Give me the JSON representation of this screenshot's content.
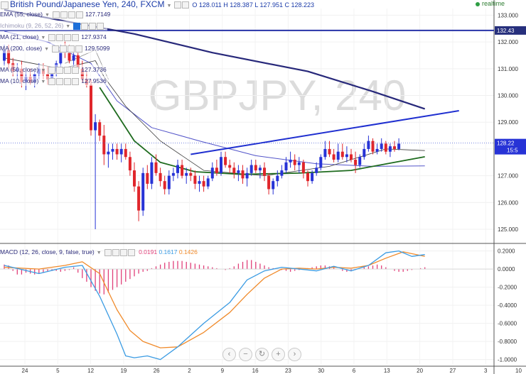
{
  "header": {
    "symbol_title": "British Pound/Japanese Yen, 240, FXCM",
    "ohlc": "O 128.011 H 128.387 L 127.951 C 128.223",
    "status": "realtime"
  },
  "indicators": [
    {
      "label": "EMA (55, close)",
      "value": "127.7149"
    },
    {
      "label": "Ichimoku (9, 26, 52, 26)",
      "value": ""
    },
    {
      "label": "MA (21, close)",
      "value": "127.9374"
    },
    {
      "label": "MA (200, close)",
      "value": "129.5099"
    },
    {
      "label": "MA (50, close)",
      "value": "127.3736"
    },
    {
      "label": "MA (10, close)",
      "value": "127.9536"
    }
  ],
  "watermark": "GBPJPY, 240",
  "price_axis": {
    "ticks": [
      "133.000",
      "132.000",
      "131.000",
      "130.000",
      "129.000",
      "128.000",
      "127.000",
      "126.000",
      "125.000"
    ],
    "hline_label": "132.43",
    "last_price_label": "128.22",
    "countdown_label": "15:5"
  },
  "macd": {
    "label": "MACD (12, 26, close, 9, false, true)",
    "hist_value": "0.0191",
    "macd_value": "0.1617",
    "signal_value": "0.1426",
    "ticks": [
      "0.2000",
      "0.0000",
      "-0.2000",
      "-0.4000",
      "-0.6000",
      "-0.8000",
      "-1.0000"
    ]
  },
  "time_axis": [
    "24",
    "5",
    "12",
    "19",
    "26",
    "2",
    "9",
    "16",
    "23",
    "30",
    "6",
    "13",
    "20",
    "27",
    "3",
    "10"
  ],
  "nav_buttons": [
    "‹",
    "−",
    "↻",
    "+",
    "›"
  ],
  "colors": {
    "up": "#2733d6",
    "down": "#e0262b",
    "ma200": "#27287a",
    "ma50": "#5254c9",
    "ema55": "#1e6b1e",
    "macd_line": "#3a9be3",
    "signal_line": "#f08a2a",
    "histogram": "#e0407a",
    "trendline": "#1f2fd0"
  },
  "chart_data": {
    "type": "candlestick",
    "y_range": [
      124.55,
      133.25
    ],
    "horizontal_line": 132.43,
    "trendline": {
      "from_bar": 43,
      "from_price": 127.8,
      "to_bar": 97,
      "to_price": 129.35
    },
    "candles": [
      [
        131.3,
        131.9,
        131.1,
        131.7
      ],
      [
        131.7,
        131.9,
        131.0,
        131.2
      ],
      [
        131.2,
        131.4,
        130.7,
        130.9
      ],
      [
        130.9,
        131.2,
        130.6,
        131.0
      ],
      [
        131.0,
        131.3,
        130.3,
        130.5
      ],
      [
        130.5,
        130.9,
        130.2,
        130.7
      ],
      [
        130.7,
        131.0,
        130.4,
        130.5
      ],
      [
        130.5,
        130.9,
        130.3,
        130.8
      ],
      [
        130.8,
        131.2,
        130.6,
        131.0
      ],
      [
        131.0,
        131.2,
        130.6,
        130.8
      ],
      [
        130.8,
        131.1,
        130.4,
        130.6
      ],
      [
        130.6,
        131.0,
        130.4,
        130.9
      ],
      [
        130.9,
        131.3,
        130.7,
        131.2
      ],
      [
        131.2,
        131.9,
        131.0,
        131.7
      ],
      [
        131.7,
        132.1,
        131.4,
        131.6
      ],
      [
        131.6,
        131.9,
        131.2,
        131.3
      ],
      [
        131.3,
        131.7,
        131.0,
        131.5
      ],
      [
        131.5,
        131.7,
        130.9,
        131.0
      ],
      [
        131.0,
        131.3,
        130.5,
        130.6
      ],
      [
        130.6,
        130.9,
        130.3,
        130.4
      ],
      [
        130.4,
        130.6,
        128.5,
        128.7
      ],
      [
        128.7,
        129.3,
        125.0,
        129.0
      ],
      [
        129.0,
        129.1,
        128.3,
        128.5
      ],
      [
        128.5,
        128.9,
        127.4,
        127.8
      ],
      [
        127.8,
        128.2,
        127.3,
        127.9
      ],
      [
        127.9,
        128.2,
        127.6,
        128.0
      ],
      [
        128.0,
        128.2,
        127.6,
        127.8
      ],
      [
        127.8,
        128.2,
        127.5,
        128.0
      ],
      [
        128.0,
        128.2,
        127.6,
        127.7
      ],
      [
        127.7,
        127.9,
        127.0,
        127.2
      ],
      [
        127.2,
        127.5,
        126.4,
        126.6
      ],
      [
        126.6,
        126.8,
        125.3,
        125.7
      ],
      [
        125.7,
        127.3,
        125.5,
        127.1
      ],
      [
        127.1,
        127.4,
        126.5,
        126.7
      ],
      [
        126.7,
        127.7,
        126.5,
        127.5
      ],
      [
        127.5,
        127.8,
        127.0,
        127.1
      ],
      [
        127.1,
        127.3,
        126.6,
        126.8
      ],
      [
        126.8,
        127.0,
        126.3,
        126.5
      ],
      [
        126.5,
        127.2,
        126.3,
        127.0
      ],
      [
        127.0,
        127.3,
        126.8,
        127.1
      ],
      [
        127.1,
        127.6,
        126.9,
        127.4
      ],
      [
        127.4,
        127.6,
        126.9,
        127.0
      ],
      [
        127.0,
        127.3,
        126.7,
        127.1
      ],
      [
        127.1,
        127.3,
        126.8,
        127.0
      ],
      [
        127.0,
        127.2,
        126.5,
        126.7
      ],
      [
        126.7,
        127.0,
        126.4,
        126.8
      ],
      [
        126.8,
        127.0,
        126.4,
        126.6
      ],
      [
        126.6,
        127.0,
        126.5,
        126.9
      ],
      [
        126.9,
        127.5,
        126.8,
        127.3
      ],
      [
        127.3,
        127.6,
        127.0,
        127.1
      ],
      [
        127.1,
        127.9,
        127.0,
        127.7
      ],
      [
        127.7,
        127.9,
        127.3,
        127.4
      ],
      [
        127.4,
        127.6,
        127.1,
        127.3
      ],
      [
        127.3,
        127.5,
        126.9,
        127.1
      ],
      [
        127.1,
        127.4,
        126.8,
        127.2
      ],
      [
        127.2,
        127.4,
        126.7,
        126.9
      ],
      [
        126.9,
        127.3,
        126.6,
        127.1
      ],
      [
        127.1,
        127.6,
        127.0,
        127.4
      ],
      [
        127.4,
        127.6,
        127.1,
        127.2
      ],
      [
        127.2,
        127.4,
        126.9,
        127.3
      ],
      [
        127.3,
        127.5,
        126.8,
        127.0
      ],
      [
        127.0,
        127.1,
        126.3,
        126.5
      ],
      [
        126.5,
        126.9,
        126.3,
        126.8
      ],
      [
        126.8,
        127.2,
        126.6,
        127.0
      ],
      [
        127.0,
        127.4,
        126.9,
        127.2
      ],
      [
        127.2,
        127.7,
        127.1,
        127.5
      ],
      [
        127.5,
        127.9,
        127.3,
        127.6
      ],
      [
        127.6,
        127.8,
        127.2,
        127.4
      ],
      [
        127.4,
        127.7,
        127.1,
        127.5
      ],
      [
        127.5,
        127.6,
        126.9,
        127.1
      ],
      [
        127.1,
        127.2,
        126.6,
        126.8
      ],
      [
        126.8,
        127.2,
        126.7,
        127.1
      ],
      [
        127.1,
        127.5,
        127.0,
        127.3
      ],
      [
        127.3,
        127.8,
        127.2,
        127.7
      ],
      [
        127.7,
        128.3,
        127.6,
        128.0
      ],
      [
        128.0,
        128.3,
        127.7,
        127.8
      ],
      [
        127.8,
        128.0,
        127.5,
        127.6
      ],
      [
        127.6,
        128.2,
        127.5,
        127.9
      ],
      [
        127.9,
        128.2,
        127.6,
        127.7
      ],
      [
        127.7,
        128.1,
        127.5,
        127.8
      ],
      [
        127.8,
        128.0,
        127.5,
        127.6
      ],
      [
        127.6,
        127.9,
        127.1,
        127.4
      ],
      [
        127.4,
        127.8,
        127.3,
        127.7
      ],
      [
        127.7,
        128.2,
        127.6,
        128.0
      ],
      [
        128.0,
        128.5,
        127.9,
        128.3
      ],
      [
        128.3,
        128.4,
        127.8,
        127.9
      ],
      [
        127.9,
        128.2,
        127.8,
        128.0
      ],
      [
        128.0,
        128.4,
        127.9,
        128.2
      ],
      [
        128.2,
        128.3,
        127.8,
        127.9
      ],
      [
        127.9,
        128.2,
        127.7,
        128.1
      ],
      [
        128.1,
        128.3,
        127.9,
        128.0
      ],
      [
        128.0,
        128.4,
        127.95,
        128.2
      ]
    ],
    "ma200": [
      [
        0,
        133.2
      ],
      [
        30,
        132.3
      ],
      [
        48,
        131.6
      ],
      [
        70,
        130.9
      ],
      [
        85,
        130.15
      ],
      [
        97,
        129.5
      ]
    ],
    "ma50": [
      [
        0,
        132.4
      ],
      [
        10,
        132.0
      ],
      [
        20,
        131.2
      ],
      [
        26,
        129.8
      ],
      [
        34,
        128.8
      ],
      [
        45,
        128.3
      ],
      [
        58,
        127.75
      ],
      [
        72,
        127.45
      ],
      [
        85,
        127.35
      ],
      [
        97,
        127.37
      ]
    ],
    "ema55": [
      [
        22,
        130.3
      ],
      [
        26,
        129.3
      ],
      [
        30,
        128.3
      ],
      [
        36,
        127.5
      ],
      [
        44,
        127.15
      ],
      [
        55,
        127.05
      ],
      [
        68,
        127.1
      ],
      [
        80,
        127.2
      ],
      [
        90,
        127.5
      ],
      [
        97,
        127.71
      ]
    ],
    "ma21": [
      [
        0,
        131.4
      ],
      [
        13,
        131.0
      ],
      [
        21,
        131.3
      ],
      [
        23,
        130.7
      ],
      [
        28,
        129.6
      ],
      [
        36,
        128.3
      ],
      [
        46,
        127.2
      ],
      [
        60,
        127.0
      ],
      [
        75,
        127.35
      ],
      [
        88,
        128.0
      ],
      [
        97,
        127.94
      ]
    ],
    "ma10": [
      [
        14,
        131.2
      ],
      [
        21,
        131.7
      ],
      [
        24,
        130.6
      ]
    ],
    "macd_panel": {
      "y_range": [
        -1.05,
        0.26
      ],
      "macd": [
        [
          0,
          0.04
        ],
        [
          8,
          -0.05
        ],
        [
          14,
          0.02
        ],
        [
          18,
          0.04
        ],
        [
          22,
          -0.3
        ],
        [
          26,
          -0.72
        ],
        [
          28,
          -0.96
        ],
        [
          30,
          -0.98
        ],
        [
          33,
          -0.96
        ],
        [
          36,
          -1.0
        ],
        [
          40,
          -0.86
        ],
        [
          46,
          -0.6
        ],
        [
          52,
          -0.37
        ],
        [
          56,
          -0.12
        ],
        [
          60,
          -0.02
        ],
        [
          64,
          0.02
        ],
        [
          68,
          0.0
        ],
        [
          72,
          -0.02
        ],
        [
          76,
          0.03
        ],
        [
          80,
          -0.02
        ],
        [
          84,
          0.04
        ],
        [
          88,
          0.18
        ],
        [
          91,
          0.2
        ],
        [
          94,
          0.14
        ],
        [
          97,
          0.16
        ]
      ],
      "signal": [
        [
          0,
          0.02
        ],
        [
          8,
          0.0
        ],
        [
          14,
          0.04
        ],
        [
          18,
          0.08
        ],
        [
          22,
          -0.05
        ],
        [
          26,
          -0.45
        ],
        [
          29,
          -0.68
        ],
        [
          32,
          -0.8
        ],
        [
          36,
          -0.87
        ],
        [
          40,
          -0.86
        ],
        [
          46,
          -0.7
        ],
        [
          52,
          -0.48
        ],
        [
          56,
          -0.28
        ],
        [
          60,
          -0.1
        ],
        [
          64,
          0.0
        ],
        [
          68,
          0.01
        ],
        [
          72,
          0.0
        ],
        [
          76,
          0.02
        ],
        [
          80,
          0.01
        ],
        [
          84,
          0.04
        ],
        [
          88,
          0.12
        ],
        [
          92,
          0.19
        ],
        [
          97,
          0.14
        ]
      ],
      "histogram": [
        0.05,
        0.04,
        -0.02,
        -0.06,
        -0.06,
        -0.04,
        -0.05,
        -0.06,
        -0.05,
        -0.04,
        -0.03,
        -0.02,
        -0.02,
        -0.03,
        -0.02,
        -0.01,
        0.02,
        -0.04,
        -0.1,
        -0.14,
        -0.2,
        -0.24,
        -0.27,
        -0.28,
        -0.26,
        -0.23,
        -0.2,
        -0.17,
        -0.14,
        -0.11,
        -0.08,
        -0.05,
        -0.03,
        -0.02,
        0.01,
        0.03,
        0.05,
        0.07,
        0.08,
        0.09,
        0.09,
        0.09,
        0.08,
        0.07,
        0.06,
        0.05,
        0.04,
        0.03,
        0.02,
        0.01,
        0.0,
        -0.01,
        0.01,
        0.03,
        0.06,
        0.08,
        0.1,
        0.1,
        0.08,
        0.06,
        0.04,
        0.02,
        0.01,
        0.0,
        -0.01,
        -0.02,
        -0.03,
        -0.02,
        -0.01,
        0.0,
        0.01,
        0.02,
        0.03,
        0.04,
        0.04,
        0.03,
        0.02,
        0.0,
        -0.02,
        -0.03,
        -0.02,
        -0.01,
        0.0,
        0.02,
        0.03,
        0.04,
        0.05,
        0.04,
        0.02,
        0.0,
        -0.02,
        -0.03,
        -0.03,
        -0.02,
        -0.01,
        0.0,
        0.01,
        0.02
      ]
    }
  }
}
